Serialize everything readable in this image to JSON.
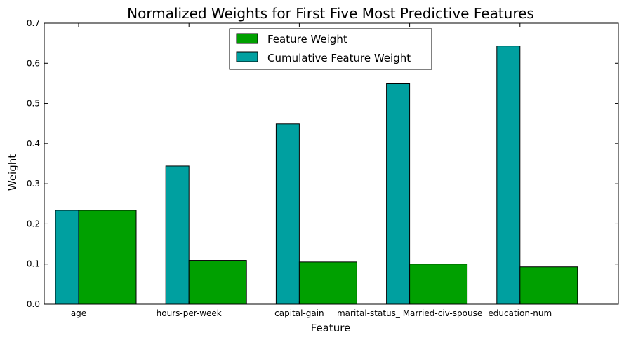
{
  "chart_data": {
    "type": "bar",
    "title": "Normalized Weights for First Five Most Predictive Features",
    "xlabel": "Feature",
    "ylabel": "Weight",
    "categories": [
      "age",
      "hours-per-week",
      "capital-gain",
      "marital-status_ Married-civ-spouse",
      "education-num"
    ],
    "ylim": [
      0,
      0.7
    ],
    "yticks": [
      "0.0",
      "0.1",
      "0.2",
      "0.3",
      "0.4",
      "0.5",
      "0.6",
      "0.7"
    ],
    "grid": false,
    "legend_position": "top-center",
    "series": [
      {
        "name": "Feature Weight",
        "color": "#00a000",
        "values": [
          0.234,
          0.109,
          0.105,
          0.1,
          0.093
        ]
      },
      {
        "name": "Cumulative Feature Weight",
        "color": "#00a0a0",
        "values": [
          0.234,
          0.344,
          0.449,
          0.549,
          0.643
        ]
      }
    ]
  }
}
